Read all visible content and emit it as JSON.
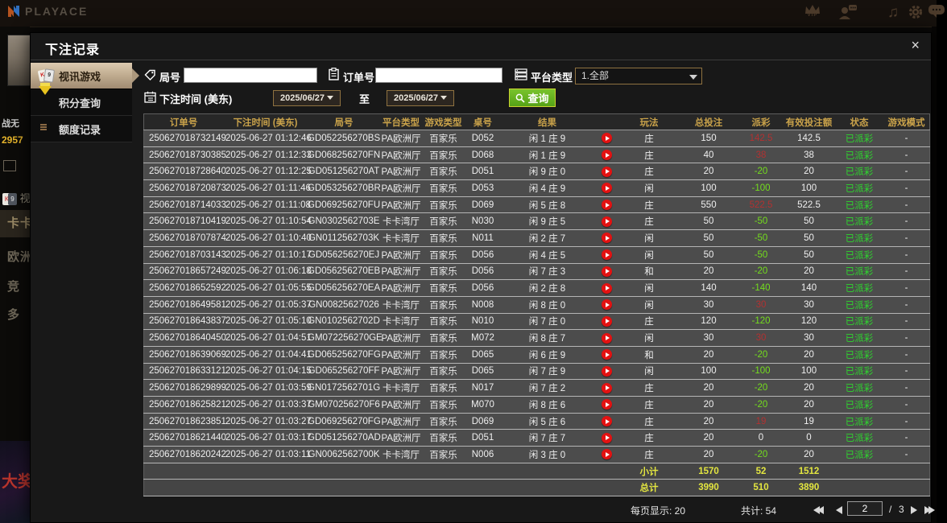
{
  "topbar": {
    "logo_text": "PLAYACE",
    "icons": [
      {
        "name": "vip-icon",
        "label": "VIP"
      },
      {
        "name": "support-icon"
      },
      {
        "name": "music-icon",
        "glyph": "♫"
      },
      {
        "name": "settings-icon"
      },
      {
        "name": "chat-icon"
      }
    ]
  },
  "background": {
    "username": "战无",
    "balance": "2957",
    "video_menu": "视",
    "menu_items": [
      "卡卡",
      "欧洲",
      "竞",
      "多"
    ],
    "poster_text": "大奖"
  },
  "modal": {
    "title": "下注记录",
    "close_glyph": "×",
    "tabs": [
      {
        "label": "视讯游戏",
        "active": true
      },
      {
        "label": "积分查询",
        "active": false
      },
      {
        "label": "额度记录",
        "active": false
      }
    ],
    "filters": {
      "round_label": "局号",
      "order_label": "订单号",
      "platform_label": "平台类型",
      "platform_value": "1.全部",
      "bet_time_label": "下注时间 (美东)",
      "date_from": "2025/06/27",
      "to_label": "至",
      "date_to": "2025/06/27",
      "query_label": "查询"
    },
    "table": {
      "headers": [
        "订单号",
        "下注时间 (美东)",
        "局号",
        "平台类型",
        "游戏类型",
        "桌号",
        "结果",
        "",
        "玩法",
        "总投注",
        "派彩",
        "有效投注额",
        "状态",
        "游戏模式"
      ],
      "rows": [
        {
          "order": "250627018732149",
          "time": "2025-06-27 01:12:46",
          "round": "GD052256270BS",
          "platform": "PA欧洲厅",
          "game": "百家乐",
          "table": "D052",
          "result": "闲 1 庄 9",
          "play": "庄",
          "bet": "150",
          "payout": "142.5",
          "payout_type": "pos",
          "valid": "142.5",
          "status": "已派彩",
          "mode": "-"
        },
        {
          "order": "250627018730385",
          "time": "2025-06-27 01:12:33",
          "round": "GD068256270FN",
          "platform": "PA欧洲厅",
          "game": "百家乐",
          "table": "D068",
          "result": "闲 1 庄 9",
          "play": "庄",
          "bet": "40",
          "payout": "38",
          "payout_type": "pos",
          "valid": "38",
          "status": "已派彩",
          "mode": "-"
        },
        {
          "order": "250627018728640",
          "time": "2025-06-27 01:12:25",
          "round": "GD051256270AT",
          "platform": "PA欧洲厅",
          "game": "百家乐",
          "table": "D051",
          "result": "闲 9 庄 0",
          "play": "庄",
          "bet": "20",
          "payout": "-20",
          "payout_type": "neg",
          "valid": "20",
          "status": "已派彩",
          "mode": "-"
        },
        {
          "order": "250627018720873",
          "time": "2025-06-27 01:11:46",
          "round": "GD053256270BR",
          "platform": "PA欧洲厅",
          "game": "百家乐",
          "table": "D053",
          "result": "闲 4 庄 9",
          "play": "闲",
          "bet": "100",
          "payout": "-100",
          "payout_type": "neg",
          "valid": "100",
          "status": "已派彩",
          "mode": "-"
        },
        {
          "order": "250627018714033",
          "time": "2025-06-27 01:11:08",
          "round": "GD069256270FU",
          "platform": "PA欧洲厅",
          "game": "百家乐",
          "table": "D069",
          "result": "闲 5 庄 8",
          "play": "庄",
          "bet": "550",
          "payout": "522.5",
          "payout_type": "pos",
          "valid": "522.5",
          "status": "已派彩",
          "mode": "-"
        },
        {
          "order": "250627018710419",
          "time": "2025-06-27 01:10:54",
          "round": "GN0302562703E",
          "platform": "卡卡湾厅",
          "game": "百家乐",
          "table": "N030",
          "result": "闲 9 庄 5",
          "play": "庄",
          "bet": "50",
          "payout": "-50",
          "payout_type": "neg",
          "valid": "50",
          "status": "已派彩",
          "mode": "-"
        },
        {
          "order": "250627018707874",
          "time": "2025-06-27 01:10:40",
          "round": "GN0112562703K",
          "platform": "卡卡湾厅",
          "game": "百家乐",
          "table": "N011",
          "result": "闲 2 庄 7",
          "play": "闲",
          "bet": "50",
          "payout": "-50",
          "payout_type": "neg",
          "valid": "50",
          "status": "已派彩",
          "mode": "-"
        },
        {
          "order": "250627018703143",
          "time": "2025-06-27 01:10:17",
          "round": "GD056256270EJ",
          "platform": "PA欧洲厅",
          "game": "百家乐",
          "table": "D056",
          "result": "闲 4 庄 5",
          "play": "闲",
          "bet": "50",
          "payout": "-50",
          "payout_type": "neg",
          "valid": "50",
          "status": "已派彩",
          "mode": "-"
        },
        {
          "order": "250627018657249",
          "time": "2025-06-27 01:06:18",
          "round": "GD056256270EB",
          "platform": "PA欧洲厅",
          "game": "百家乐",
          "table": "D056",
          "result": "闲 7 庄 3",
          "play": "和",
          "bet": "20",
          "payout": "-20",
          "payout_type": "neg",
          "valid": "20",
          "status": "已派彩",
          "mode": "-"
        },
        {
          "order": "250627018652592",
          "time": "2025-06-27 01:05:55",
          "round": "GD056256270EA",
          "platform": "PA欧洲厅",
          "game": "百家乐",
          "table": "D056",
          "result": "闲 2 庄 8",
          "play": "闲",
          "bet": "140",
          "payout": "-140",
          "payout_type": "neg",
          "valid": "140",
          "status": "已派彩",
          "mode": "-"
        },
        {
          "order": "250627018649581",
          "time": "2025-06-27 01:05:37",
          "round": "GN00825627026",
          "platform": "卡卡湾厅",
          "game": "百家乐",
          "table": "N008",
          "result": "闲 8 庄 0",
          "play": "闲",
          "bet": "30",
          "payout": "30",
          "payout_type": "pos",
          "valid": "30",
          "status": "已派彩",
          "mode": "-"
        },
        {
          "order": "250627018643837",
          "time": "2025-06-27 01:05:10",
          "round": "GN0102562702D",
          "platform": "卡卡湾厅",
          "game": "百家乐",
          "table": "N010",
          "result": "闲 7 庄 0",
          "play": "庄",
          "bet": "120",
          "payout": "-120",
          "payout_type": "neg",
          "valid": "120",
          "status": "已派彩",
          "mode": "-"
        },
        {
          "order": "250627018640450",
          "time": "2025-06-27 01:04:51",
          "round": "GM072256270GE",
          "platform": "PA欧洲厅",
          "game": "百家乐",
          "table": "M072",
          "result": "闲 8 庄 7",
          "play": "闲",
          "bet": "30",
          "payout": "30",
          "payout_type": "pos",
          "valid": "30",
          "status": "已派彩",
          "mode": "-"
        },
        {
          "order": "250627018639069",
          "time": "2025-06-27 01:04:41",
          "round": "GD065256270FG",
          "platform": "PA欧洲厅",
          "game": "百家乐",
          "table": "D065",
          "result": "闲 6 庄 9",
          "play": "和",
          "bet": "20",
          "payout": "-20",
          "payout_type": "neg",
          "valid": "20",
          "status": "已派彩",
          "mode": "-"
        },
        {
          "order": "250627018633121",
          "time": "2025-06-27 01:04:15",
          "round": "GD065256270FF",
          "platform": "PA欧洲厅",
          "game": "百家乐",
          "table": "D065",
          "result": "闲 7 庄 9",
          "play": "闲",
          "bet": "100",
          "payout": "-100",
          "payout_type": "neg",
          "valid": "100",
          "status": "已派彩",
          "mode": "-"
        },
        {
          "order": "250627018629899",
          "time": "2025-06-27 01:03:59",
          "round": "GN0172562701G",
          "platform": "卡卡湾厅",
          "game": "百家乐",
          "table": "N017",
          "result": "闲 7 庄 2",
          "play": "庄",
          "bet": "20",
          "payout": "-20",
          "payout_type": "neg",
          "valid": "20",
          "status": "已派彩",
          "mode": "-"
        },
        {
          "order": "250627018625821",
          "time": "2025-06-27 01:03:37",
          "round": "GM070256270F6",
          "platform": "PA欧洲厅",
          "game": "百家乐",
          "table": "M070",
          "result": "闲 8 庄 6",
          "play": "庄",
          "bet": "20",
          "payout": "-20",
          "payout_type": "neg",
          "valid": "20",
          "status": "已派彩",
          "mode": "-"
        },
        {
          "order": "250627018623851",
          "time": "2025-06-27 01:03:27",
          "round": "GD069256270FG",
          "platform": "PA欧洲厅",
          "game": "百家乐",
          "table": "D069",
          "result": "闲 5 庄 6",
          "play": "庄",
          "bet": "20",
          "payout": "19",
          "payout_type": "pos",
          "valid": "19",
          "status": "已派彩",
          "mode": "-"
        },
        {
          "order": "250627018621440",
          "time": "2025-06-27 01:03:17",
          "round": "GD051256270AD",
          "platform": "PA欧洲厅",
          "game": "百家乐",
          "table": "D051",
          "result": "闲 7 庄 7",
          "play": "庄",
          "bet": "20",
          "payout": "0",
          "payout_type": "zero",
          "valid": "0",
          "status": "已派彩",
          "mode": "-"
        },
        {
          "order": "250627018620242",
          "time": "2025-06-27 01:03:11",
          "round": "GN0062562700K",
          "platform": "卡卡湾厅",
          "game": "百家乐",
          "table": "N006",
          "result": "闲 3 庄 0",
          "play": "庄",
          "bet": "20",
          "payout": "-20",
          "payout_type": "neg",
          "valid": "20",
          "status": "已派彩",
          "mode": "-"
        }
      ],
      "subtotal": {
        "label": "小计",
        "total_bet": "1570",
        "payout": "52",
        "valid_bet": "1512"
      },
      "total": {
        "label": "总计",
        "total_bet": "3990",
        "payout": "510",
        "valid_bet": "3890"
      }
    },
    "pagination": {
      "per_page_label": "每页显示: 20",
      "total_count_label": "共计: 54",
      "current_page": "2",
      "separator": "/",
      "total_pages": "3"
    }
  }
}
